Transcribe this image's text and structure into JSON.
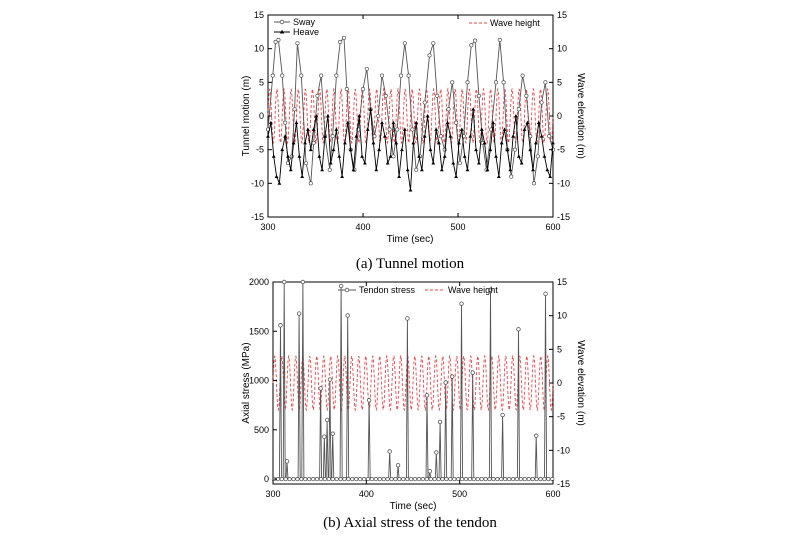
{
  "chart_data": [
    {
      "type": "line",
      "xlabel": "Time (sec)",
      "ylabel": "Tunnel motion (m)",
      "y2label": "Wave elevation (m)",
      "caption": "(a)  Tunnel  motion",
      "xlim": [
        300,
        600
      ],
      "xticks": [
        300,
        400,
        500,
        600
      ],
      "ylim": [
        -15,
        15
      ],
      "yticks": [
        -15,
        -10,
        -5,
        0,
        5,
        10,
        15
      ],
      "y2lim": [
        -15,
        15
      ],
      "y2ticks": [
        -15,
        -10,
        -5,
        0,
        5,
        10,
        15
      ],
      "legend": [
        "Sway",
        "Heave",
        "Wave height"
      ],
      "series": [
        {
          "name": "Sway",
          "axis": "left",
          "color": "#555555",
          "marker": "circle",
          "x": [
            300,
            305,
            308,
            311,
            315,
            318,
            321,
            325,
            328,
            331,
            335,
            340,
            345,
            348,
            352,
            356,
            360,
            365,
            368,
            372,
            376,
            380,
            383,
            387,
            391,
            395,
            400,
            404,
            408,
            412,
            416,
            420,
            424,
            428,
            432,
            436,
            440,
            444,
            448,
            452,
            456,
            460,
            465,
            470,
            474,
            478,
            482,
            486,
            490,
            494,
            498,
            502,
            506,
            510,
            514,
            518,
            522,
            526,
            530,
            535,
            540,
            544,
            548,
            552,
            556,
            560,
            564,
            568,
            572,
            576,
            580,
            584,
            588,
            592,
            596,
            600
          ],
          "y": [
            -2,
            6,
            11,
            11.3,
            6,
            -1,
            -7,
            -6,
            1,
            10.8,
            6,
            -7,
            -10,
            -4,
            3,
            6,
            -3,
            -8,
            -3,
            6,
            11,
            11.6,
            4,
            -5,
            -8,
            -2,
            4,
            7,
            1,
            -3,
            0,
            6,
            3,
            -2,
            -6,
            -2,
            6,
            10.8,
            6,
            -2,
            -8,
            -6,
            2,
            9,
            10.8,
            3,
            -3,
            -5,
            1,
            5,
            -1,
            -7,
            -3,
            5,
            10.5,
            11.2,
            3,
            -4,
            -8,
            -2,
            5,
            11.3,
            5,
            -5,
            -9,
            -5,
            1,
            6,
            3,
            -3,
            -10,
            -6,
            2,
            5,
            -3,
            -5
          ]
        },
        {
          "name": "Heave",
          "axis": "left",
          "color": "#000000",
          "marker": "triangle",
          "x": [
            300,
            303,
            306,
            309,
            312,
            315,
            318,
            321,
            324,
            327,
            330,
            333,
            336,
            339,
            342,
            345,
            348,
            351,
            354,
            357,
            360,
            363,
            366,
            369,
            372,
            375,
            378,
            381,
            384,
            387,
            390,
            393,
            396,
            399,
            402,
            405,
            408,
            411,
            414,
            417,
            420,
            423,
            426,
            429,
            432,
            435,
            438,
            441,
            444,
            447,
            450,
            453,
            456,
            459,
            462,
            465,
            468,
            471,
            474,
            477,
            480,
            483,
            486,
            489,
            492,
            495,
            498,
            501,
            504,
            507,
            510,
            513,
            516,
            519,
            522,
            525,
            528,
            531,
            534,
            537,
            540,
            543,
            546,
            549,
            552,
            555,
            558,
            561,
            564,
            567,
            570,
            573,
            576,
            579,
            582,
            585,
            588,
            591,
            594,
            597,
            600
          ],
          "y": [
            -3,
            -1,
            -6,
            -9,
            -10,
            -5,
            -3,
            -6,
            -8,
            -4,
            -1,
            -6,
            -9,
            -4,
            -2,
            -5,
            -2,
            0,
            -6,
            -8,
            -3,
            0,
            -7,
            -5,
            -2,
            -6,
            -9,
            -4,
            -1,
            -5,
            -8,
            -3,
            0,
            -6,
            -7,
            -2,
            1,
            -4,
            -8,
            -5,
            -1,
            -3,
            -7,
            -6,
            -1,
            -4,
            -9,
            -5,
            -2,
            -8,
            -11,
            -4,
            -1,
            -6,
            -8,
            -3,
            0,
            -5,
            -7,
            -2,
            -4,
            -8,
            -6,
            -1,
            -3,
            -7,
            -9,
            -4,
            -2,
            -6,
            -8,
            -3,
            1,
            -5,
            -7,
            -2,
            -4,
            -8,
            -5,
            -1,
            -6,
            -9,
            -4,
            -2,
            -5,
            -8,
            -3,
            0,
            -6,
            -7,
            -2,
            -1,
            -5,
            -8,
            -4,
            -1,
            -3,
            -6,
            -8,
            -9,
            -4
          ]
        },
        {
          "name": "Wave height",
          "axis": "right",
          "color": "#e8454a",
          "dashed": true,
          "amplitude": 4,
          "period": 7.5,
          "x_start": 300,
          "x_end": 600
        }
      ]
    },
    {
      "type": "line",
      "xlabel": "Time (sec)",
      "ylabel": "Axial stress (MPa)",
      "y2label": "Wave elevation (m)",
      "caption": "(b)  Axial  stress  of  the  tendon",
      "xlim": [
        300,
        600
      ],
      "xticks": [
        300,
        400,
        500,
        600
      ],
      "ylim": [
        -50,
        2000
      ],
      "yticks": [
        0,
        500,
        1000,
        1500,
        2000
      ],
      "y2lim": [
        -15,
        15
      ],
      "y2ticks": [
        -15,
        -10,
        -5,
        0,
        5,
        10,
        15
      ],
      "legend": [
        "Tendon stress",
        "Wave height"
      ],
      "series": [
        {
          "name": "Tendon stress",
          "axis": "left",
          "color": "#555555",
          "marker": "circle",
          "spikes": [
            [
              308,
              1560
            ],
            [
              312,
              2000
            ],
            [
              315,
              180
            ],
            [
              328,
              1680
            ],
            [
              332,
              2000
            ],
            [
              351,
              920
            ],
            [
              355,
              430
            ],
            [
              358,
              600
            ],
            [
              361,
              1010
            ],
            [
              364,
              460
            ],
            [
              373,
              1960
            ],
            [
              380,
              1660
            ],
            [
              403,
              800
            ],
            [
              425,
              280
            ],
            [
              434,
              140
            ],
            [
              444,
              1630
            ],
            [
              465,
              850
            ],
            [
              468,
              80
            ],
            [
              475,
              270
            ],
            [
              479,
              580
            ],
            [
              485,
              980
            ],
            [
              492,
              1040
            ],
            [
              502,
              1780
            ],
            [
              514,
              1080
            ],
            [
              533,
              1920
            ],
            [
              546,
              650
            ],
            [
              563,
              1520
            ],
            [
              582,
              440
            ],
            [
              592,
              1880
            ]
          ]
        },
        {
          "name": "Wave height",
          "axis": "right",
          "color": "#e8454a",
          "dashed": true,
          "amplitude": 4,
          "period": 7.5,
          "x_start": 300,
          "x_end": 600
        }
      ]
    }
  ]
}
